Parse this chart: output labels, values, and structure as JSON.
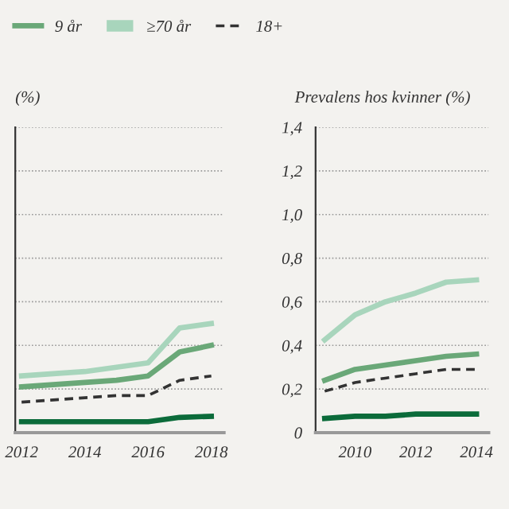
{
  "chart_data": [
    {
      "type": "line",
      "ylabel": "(%)",
      "x": [
        2012,
        2013,
        2014,
        2015,
        2016,
        2017,
        2018
      ],
      "xlim": [
        2011.8,
        2018.4
      ],
      "xticks": [
        2012,
        2014,
        2016,
        2018
      ],
      "ylim": [
        0,
        1.4
      ],
      "yticks": [
        0,
        0.2,
        0.4,
        0.6,
        0.8,
        1.0,
        1.2,
        1.4
      ],
      "tick_labels": "x",
      "grid": "y",
      "legend": "top",
      "series": [
        {
          "color": "#0b6b3a",
          "values": [
            0.05,
            0.05,
            0.05,
            0.05,
            0.05,
            0.07,
            0.075
          ]
        },
        {
          "name": "9 år",
          "color": "#6aa878",
          "values": [
            0.21,
            0.22,
            0.23,
            0.24,
            0.26,
            0.37,
            0.4
          ]
        },
        {
          "name": "≥70 år",
          "color": "#a8d5bc",
          "values": [
            0.26,
            0.27,
            0.28,
            0.3,
            0.32,
            0.48,
            0.5
          ]
        },
        {
          "name": "18+",
          "color": "#333333",
          "line_style": "dashed",
          "values": [
            0.14,
            0.15,
            0.16,
            0.17,
            0.17,
            0.24,
            0.26
          ]
        }
      ]
    },
    {
      "type": "line",
      "ylabel": "Prevalens hos kvinner (%)",
      "x": [
        2009,
        2010,
        2011,
        2012,
        2013,
        2014
      ],
      "xlim": [
        2008.7,
        2014.4
      ],
      "xticks": [
        2010,
        2012,
        2014
      ],
      "ylim": [
        0,
        1.4
      ],
      "yticks": [
        {
          "value": 0,
          "label": "0"
        },
        {
          "value": 0.2,
          "label": "0,2"
        },
        {
          "value": 0.4,
          "label": "0,4"
        },
        {
          "value": 0.6,
          "label": "0,6"
        },
        {
          "value": 0.8,
          "label": "0,8"
        },
        {
          "value": 1.0,
          "label": "1,0"
        },
        {
          "value": 1.2,
          "label": "1,2"
        },
        {
          "value": 1.4,
          "label": "1,4"
        }
      ],
      "grid": "y",
      "series": [
        {
          "color": "#0b6b3a",
          "values": [
            0.065,
            0.075,
            0.075,
            0.085,
            0.085,
            0.085
          ]
        },
        {
          "color": "#6aa878",
          "values": [
            0.24,
            0.29,
            0.31,
            0.33,
            0.35,
            0.36
          ]
        },
        {
          "color": "#a8d5bc",
          "values": [
            0.425,
            0.54,
            0.6,
            0.64,
            0.69,
            0.7
          ]
        },
        {
          "color": "#333333",
          "line_style": "dashed",
          "values": [
            0.19,
            0.23,
            0.25,
            0.27,
            0.29,
            0.29
          ]
        }
      ]
    }
  ]
}
